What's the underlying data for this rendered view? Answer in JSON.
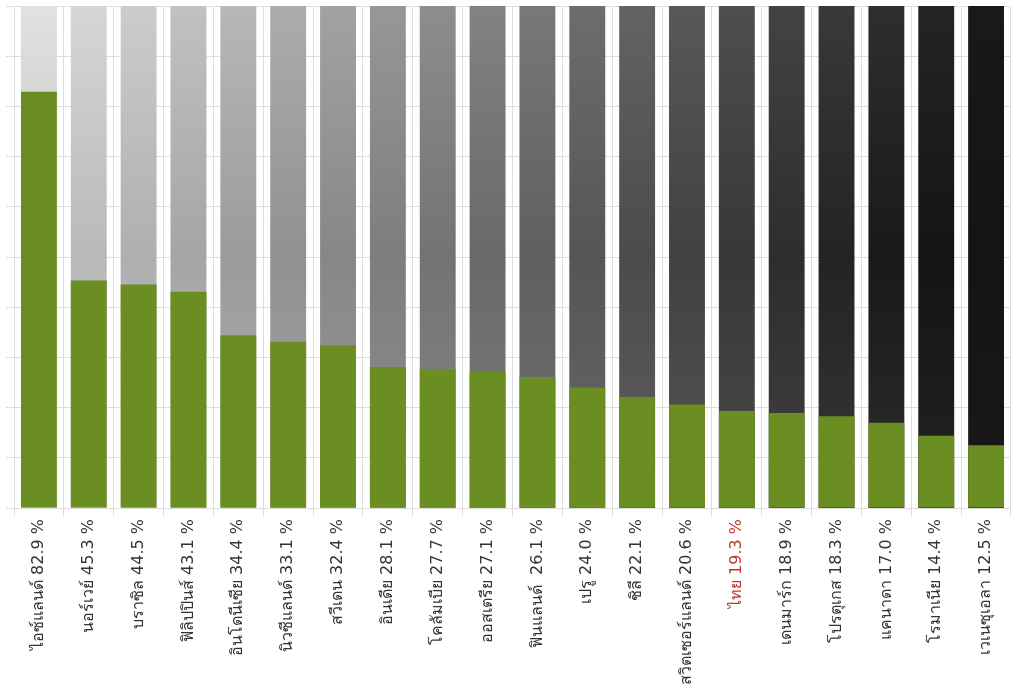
{
  "chart_data": {
    "type": "bar",
    "categories": [
      "ไอซ์แลนด์ 82.9 %",
      "นอร์เวย์ 45.3 %",
      "บราซิล 44.5 %",
      "ฟิลิปปินส์ 43.1 %",
      "อินโดนีเซีย 34.4 %",
      "นิวซีแลนด์ 33.1 %",
      "สวีเดน 32.4 %",
      "อินเดีย 28.1 %",
      "โคลัมเบีย 27.7 %",
      "ออสเตรีย 27.1 %",
      "ฟินแลนด์  26.1 %",
      "เปรู 24.0 %",
      "ชิลี 22.1 %",
      "สวิตเซอร์แลนด์ 20.6 %",
      "ไทย 19.3 %",
      "เดนมาร์ก 18.9 %",
      "โปรตุเกส 18.3 %",
      "แคนาดา 17.0 %",
      "โรมาเนีย 14.4 %",
      "เวเนซุเอลา 12.5 %"
    ],
    "values": [
      82.9,
      45.3,
      44.5,
      43.1,
      34.4,
      33.1,
      32.4,
      28.1,
      27.7,
      27.1,
      26.1,
      24.0,
      22.1,
      20.6,
      19.3,
      18.9,
      18.3,
      17.0,
      14.4,
      12.5
    ],
    "color": "#6b8e23",
    "ylim": [
      0,
      100
    ],
    "yticks": [
      0,
      10,
      20,
      30,
      40,
      50,
      60,
      70,
      80,
      90,
      100
    ],
    "grid": true,
    "tick_labels": "x"
  }
}
